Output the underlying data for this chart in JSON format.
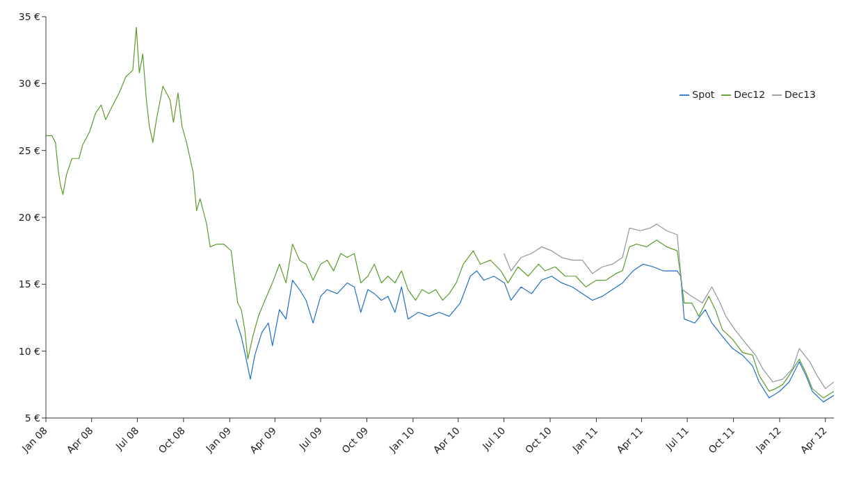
{
  "chart_data": {
    "type": "line",
    "xlim": [
      "2008-01-01",
      "2012-04-18"
    ],
    "xticks": [
      {
        "value": "2008-01-01",
        "label": "Jan 08"
      },
      {
        "value": "2008-04-01",
        "label": "Apr 08"
      },
      {
        "value": "2008-07-01",
        "label": "Jul 08"
      },
      {
        "value": "2008-10-01",
        "label": "Oct 08"
      },
      {
        "value": "2009-01-01",
        "label": "Jan 09"
      },
      {
        "value": "2009-04-01",
        "label": "Apr 09"
      },
      {
        "value": "2009-07-01",
        "label": "Jul 09"
      },
      {
        "value": "2009-10-01",
        "label": "Oct 09"
      },
      {
        "value": "2010-01-01",
        "label": "Jan 10"
      },
      {
        "value": "2010-04-01",
        "label": "Apr 10"
      },
      {
        "value": "2010-07-01",
        "label": "Jul 10"
      },
      {
        "value": "2010-10-01",
        "label": "Oct 10"
      },
      {
        "value": "2011-01-01",
        "label": "Jan 11"
      },
      {
        "value": "2011-04-01",
        "label": "Apr 11"
      },
      {
        "value": "2011-07-01",
        "label": "Jul 11"
      },
      {
        "value": "2011-10-01",
        "label": "Oct 11"
      },
      {
        "value": "2012-01-01",
        "label": "Jan 12"
      },
      {
        "value": "2012-04-01",
        "label": "Apr 12"
      }
    ],
    "ylim": [
      5,
      35
    ],
    "yticks": [
      {
        "value": 5,
        "label": "5 €"
      },
      {
        "value": 10,
        "label": "10 €"
      },
      {
        "value": 15,
        "label": "15 €"
      },
      {
        "value": 20,
        "label": "20 €"
      },
      {
        "value": 25,
        "label": "25 €"
      },
      {
        "value": 30,
        "label": "30 €"
      },
      {
        "value": 35,
        "label": "35 €"
      }
    ],
    "legend": "top right",
    "marker": "none",
    "line_style": "solid",
    "series": [
      {
        "name": "Spot",
        "color": "#1f6fc5",
        "x": [
          "2009-01-13",
          "2009-01-24",
          "2009-01-31",
          "2009-02-11",
          "2009-02-20",
          "2009-03-06",
          "2009-03-19",
          "2009-03-27",
          "2009-04-10",
          "2009-04-23",
          "2009-05-06",
          "2009-05-20",
          "2009-06-02",
          "2009-06-16",
          "2009-07-01",
          "2009-07-14",
          "2009-08-03",
          "2009-08-23",
          "2009-09-06",
          "2009-09-19",
          "2009-10-03",
          "2009-10-16",
          "2009-10-30",
          "2009-11-12",
          "2009-11-26",
          "2009-12-09",
          "2009-12-22",
          "2010-01-12",
          "2010-02-02",
          "2010-02-22",
          "2010-03-14",
          "2010-04-05",
          "2010-04-25",
          "2010-05-08",
          "2010-05-22",
          "2010-06-11",
          "2010-07-02",
          "2010-07-15",
          "2010-08-04",
          "2010-08-25",
          "2010-09-14",
          "2010-10-04",
          "2010-10-24",
          "2010-11-14",
          "2010-12-04",
          "2010-12-24",
          "2011-01-13",
          "2011-02-02",
          "2011-02-22",
          "2011-03-15",
          "2011-04-04",
          "2011-04-24",
          "2011-05-14",
          "2011-06-11",
          "2011-06-18",
          "2011-06-25",
          "2011-07-16",
          "2011-08-06",
          "2011-08-19",
          "2011-09-09",
          "2011-09-29",
          "2011-10-19",
          "2011-11-08",
          "2011-11-21",
          "2011-12-11",
          "2012-01-01",
          "2012-01-20",
          "2012-02-09",
          "2012-02-22",
          "2012-03-06",
          "2012-03-28",
          "2012-04-18"
        ],
        "values": [
          12.4,
          11.1,
          9.9,
          7.9,
          9.7,
          11.4,
          12.1,
          10.4,
          13.1,
          12.4,
          15.3,
          14.6,
          13.8,
          12.1,
          14.1,
          14.6,
          14.3,
          15.1,
          14.8,
          12.9,
          14.6,
          14.3,
          13.8,
          14.1,
          12.9,
          14.8,
          12.4,
          12.9,
          12.6,
          12.9,
          12.6,
          13.6,
          15.6,
          16.0,
          15.3,
          15.6,
          15.1,
          13.8,
          14.8,
          14.3,
          15.3,
          15.6,
          15.1,
          14.8,
          14.3,
          13.8,
          14.1,
          14.6,
          15.1,
          16.0,
          16.5,
          16.3,
          16.0,
          16.0,
          15.6,
          12.4,
          12.1,
          13.1,
          12.1,
          11.1,
          10.2,
          9.7,
          8.9,
          7.7,
          6.5,
          7.0,
          7.7,
          9.2,
          8.2,
          7.0,
          6.2,
          6.7
        ]
      },
      {
        "name": "Dec12",
        "color": "#5a9a2a",
        "x": [
          "2008-01-02",
          "2008-01-13",
          "2008-01-20",
          "2008-01-26",
          "2008-01-30",
          "2008-02-04",
          "2008-02-11",
          "2008-02-22",
          "2008-03-07",
          "2008-03-14",
          "2008-03-28",
          "2008-04-09",
          "2008-04-20",
          "2008-04-29",
          "2008-05-12",
          "2008-05-26",
          "2008-06-08",
          "2008-06-22",
          "2008-06-29",
          "2008-07-05",
          "2008-07-12",
          "2008-07-19",
          "2008-07-25",
          "2008-08-01",
          "2008-08-08",
          "2008-08-21",
          "2008-09-04",
          "2008-09-11",
          "2008-09-20",
          "2008-09-28",
          "2008-10-07",
          "2008-10-20",
          "2008-10-27",
          "2008-11-03",
          "2008-11-16",
          "2008-11-23",
          "2008-12-07",
          "2008-12-20",
          "2009-01-04",
          "2009-01-10",
          "2009-01-17",
          "2009-01-24",
          "2009-01-31",
          "2009-02-06",
          "2009-02-16",
          "2009-02-27",
          "2009-03-12",
          "2009-03-27",
          "2009-04-10",
          "2009-04-23",
          "2009-05-06",
          "2009-05-20",
          "2009-06-02",
          "2009-06-16",
          "2009-07-01",
          "2009-07-14",
          "2009-07-27",
          "2009-08-10",
          "2009-08-23",
          "2009-09-06",
          "2009-09-19",
          "2009-10-03",
          "2009-10-16",
          "2009-10-30",
          "2009-11-12",
          "2009-11-26",
          "2009-12-09",
          "2009-12-22",
          "2010-01-06",
          "2010-01-19",
          "2010-02-02",
          "2010-02-15",
          "2010-03-01",
          "2010-03-14",
          "2010-03-28",
          "2010-04-11",
          "2010-05-01",
          "2010-05-15",
          "2010-06-04",
          "2010-06-25",
          "2010-07-09",
          "2010-07-29",
          "2010-08-18",
          "2010-09-08",
          "2010-09-21",
          "2010-10-11",
          "2010-10-31",
          "2010-11-21",
          "2010-12-11",
          "2011-01-01",
          "2011-01-20",
          "2011-02-09",
          "2011-02-22",
          "2011-03-08",
          "2011-03-22",
          "2011-04-11",
          "2011-05-01",
          "2011-05-21",
          "2011-06-11",
          "2011-06-25",
          "2011-07-10",
          "2011-07-24",
          "2011-08-13",
          "2011-08-26",
          "2011-09-09",
          "2011-09-29",
          "2011-10-19",
          "2011-11-08",
          "2011-11-21",
          "2011-12-11",
          "2011-12-24",
          "2012-01-07",
          "2012-01-20",
          "2012-02-09",
          "2012-02-22",
          "2012-03-06",
          "2012-03-28",
          "2012-04-18"
        ],
        "values": [
          26.1,
          26.1,
          25.6,
          23.4,
          22.4,
          21.7,
          23.2,
          24.4,
          24.4,
          25.4,
          26.4,
          27.8,
          28.4,
          27.3,
          28.3,
          29.3,
          30.5,
          31.0,
          34.2,
          30.8,
          32.2,
          28.8,
          26.8,
          25.6,
          27.3,
          29.8,
          28.8,
          27.1,
          29.3,
          26.8,
          25.6,
          23.4,
          20.5,
          21.4,
          19.5,
          17.8,
          18.0,
          18.0,
          17.5,
          15.6,
          13.6,
          13.1,
          11.6,
          9.4,
          11.1,
          12.6,
          13.8,
          15.1,
          16.5,
          15.1,
          18.0,
          16.8,
          16.5,
          15.3,
          16.5,
          16.8,
          16.0,
          17.3,
          17.0,
          17.3,
          15.1,
          15.6,
          16.5,
          15.1,
          15.6,
          15.1,
          16.0,
          14.6,
          13.8,
          14.6,
          14.3,
          14.6,
          13.8,
          14.3,
          15.1,
          16.5,
          17.5,
          16.5,
          16.8,
          16.0,
          15.1,
          16.3,
          15.6,
          16.5,
          16.0,
          16.3,
          15.6,
          15.6,
          14.8,
          15.3,
          15.3,
          15.8,
          16.0,
          17.8,
          18.0,
          17.8,
          18.3,
          17.8,
          17.5,
          13.6,
          13.6,
          12.6,
          14.1,
          13.1,
          11.6,
          10.9,
          9.9,
          9.7,
          8.2,
          7.0,
          7.2,
          7.5,
          8.2,
          9.4,
          8.4,
          7.2,
          6.5,
          7.0
        ]
      },
      {
        "name": "Dec13",
        "color": "#8c96a0",
        "x": [
          "2010-07-01",
          "2010-07-15",
          "2010-08-04",
          "2010-08-25",
          "2010-09-14",
          "2010-10-04",
          "2010-10-24",
          "2010-11-14",
          "2010-12-04",
          "2010-12-24",
          "2011-01-13",
          "2011-02-02",
          "2011-02-22",
          "2011-03-08",
          "2011-03-29",
          "2011-04-18",
          "2011-05-01",
          "2011-05-21",
          "2011-06-11",
          "2011-06-21",
          "2011-07-10",
          "2011-07-31",
          "2011-08-19",
          "2011-09-02",
          "2011-09-16",
          "2011-10-04",
          "2011-10-25",
          "2011-11-14",
          "2011-11-28",
          "2011-12-18",
          "2012-01-07",
          "2012-01-27",
          "2012-02-09",
          "2012-03-01",
          "2012-03-15",
          "2012-04-01",
          "2012-04-18"
        ],
        "values": [
          17.3,
          16.0,
          17.0,
          17.3,
          17.8,
          17.5,
          17.0,
          16.8,
          16.8,
          15.8,
          16.3,
          16.5,
          17.0,
          19.2,
          19.0,
          19.2,
          19.5,
          19.0,
          18.7,
          14.6,
          14.1,
          13.6,
          14.8,
          13.8,
          12.6,
          11.6,
          10.6,
          9.7,
          8.7,
          7.7,
          7.9,
          8.7,
          10.2,
          9.2,
          8.2,
          7.2,
          7.7
        ]
      }
    ]
  }
}
